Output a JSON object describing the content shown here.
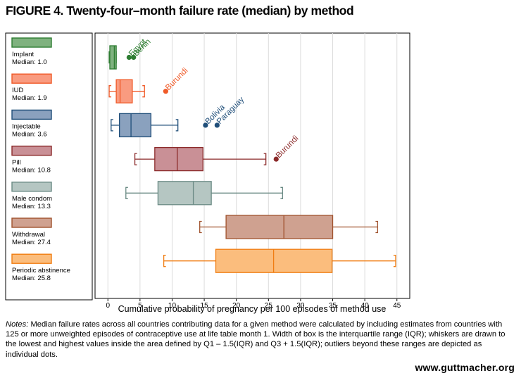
{
  "chart_data": {
    "type": "boxplot",
    "title": "FIGURE 4. Twenty-four–month failure rate (median) by method",
    "xlabel": "Cumulative probability of pregnancy per 100 episodes of method use",
    "xlim": [
      -2,
      47
    ],
    "xticks": [
      0,
      5,
      10,
      15,
      20,
      25,
      30,
      35,
      40,
      45
    ],
    "grid": true,
    "legend_placement": "left",
    "series": [
      {
        "name": "Implant",
        "median_label": "Median: 1.0",
        "color": "#2e7d32",
        "fill": "#7fb27f",
        "whisker_low": 0.2,
        "q1": 0.3,
        "median": 1.0,
        "q3": 1.3,
        "whisker_high": 1.3,
        "outliers": [
          {
            "value": 3.3,
            "label": "Egypt"
          },
          {
            "value": 4.0,
            "label": "Benin"
          }
        ]
      },
      {
        "name": "IUD",
        "median_label": "Median: 1.9",
        "color": "#f05a28",
        "fill": "#f99b80",
        "whisker_low": 0.2,
        "q1": 1.3,
        "median": 1.9,
        "q3": 3.8,
        "whisker_high": 5.7,
        "outliers": [
          {
            "value": 9.0,
            "label": "Burundi"
          }
        ]
      },
      {
        "name": "Injectable",
        "median_label": "Median: 3.6",
        "color": "#1f4e79",
        "fill": "#8aa1be",
        "whisker_low": 0.5,
        "q1": 1.8,
        "median": 3.6,
        "q3": 6.7,
        "whisker_high": 10.9,
        "outliers": [
          {
            "value": 15.2,
            "label": "Bolivia"
          },
          {
            "value": 17.0,
            "label": "Paraguay"
          }
        ]
      },
      {
        "name": "Pill",
        "median_label": "Median: 10.8",
        "color": "#8b2a2a",
        "fill": "#c99096",
        "whisker_low": 4.2,
        "q1": 7.3,
        "median": 10.8,
        "q3": 14.8,
        "whisker_high": 24.6,
        "outliers": [
          {
            "value": 26.2,
            "label": "Burundi"
          }
        ]
      },
      {
        "name": "Male condom",
        "median_label": "Median: 13.3",
        "color": "#6a8a84",
        "fill": "#b5c6c2",
        "whisker_low": 2.8,
        "q1": 7.8,
        "median": 13.3,
        "q3": 16.1,
        "whisker_high": 27.2,
        "outliers": []
      },
      {
        "name": "Withdrawal",
        "median_label": "Median: 27.4",
        "color": "#a0522d",
        "fill": "#cfa190",
        "whisker_low": 14.3,
        "q1": 18.4,
        "median": 27.4,
        "q3": 35.0,
        "whisker_high": 42.0,
        "outliers": []
      },
      {
        "name": "Periodic abstinence",
        "median_label": "Median: 25.8",
        "color": "#f07d12",
        "fill": "#fbbd7d",
        "whisker_low": 8.7,
        "q1": 16.8,
        "median": 25.8,
        "q3": 34.9,
        "whisker_high": 44.8,
        "outliers": []
      }
    ]
  },
  "notes": {
    "label": "Notes:",
    "text": " Median failure rates across all countries contributing data for a given method were calculated by including estimates from countries with 125 or more unweighted episodes of contraceptive use at life table month 1. Width of box is the interquartile range (IQR); whiskers are drawn to the lowest and highest values inside the area defined by Q1 – 1.5(IQR) and Q3 + 1.5(IQR); outliers beyond these ranges are depicted as individual dots."
  },
  "footer": {
    "url": "www.guttmacher.org"
  }
}
